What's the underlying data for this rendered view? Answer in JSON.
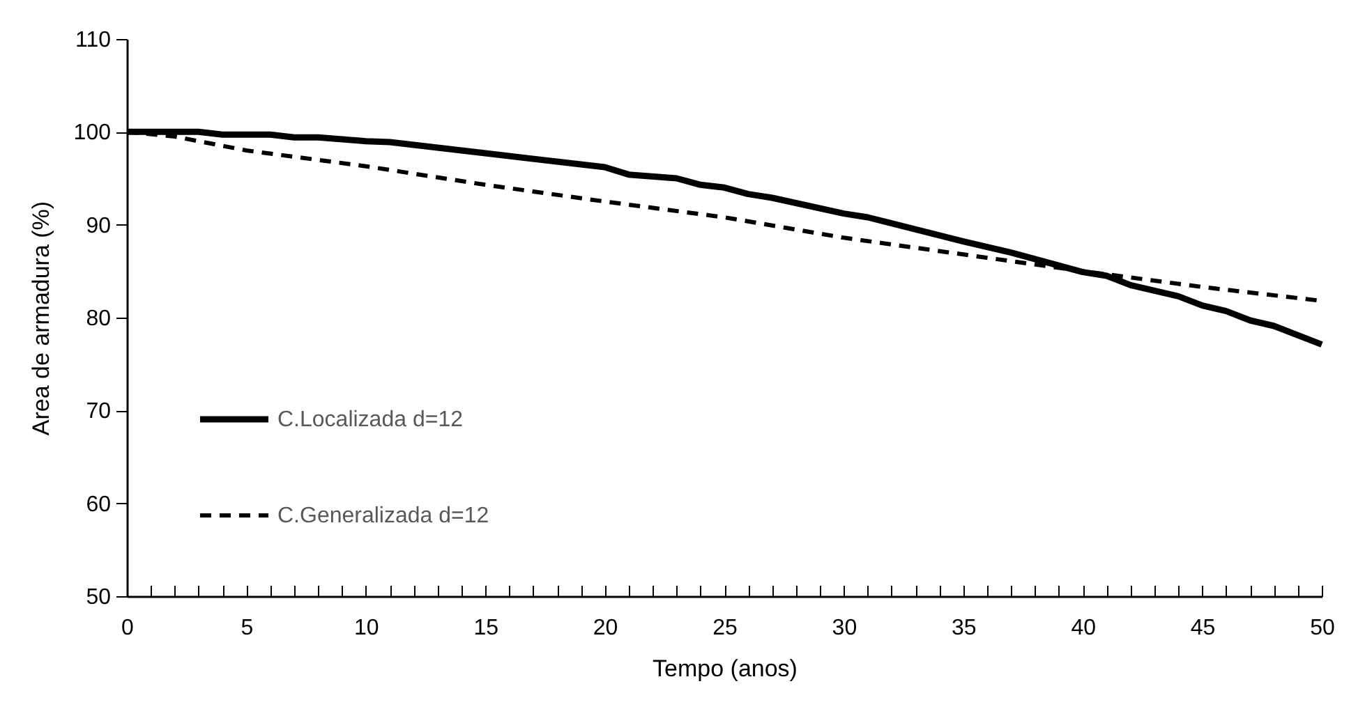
{
  "chart_data": {
    "type": "line",
    "xlabel": "Tempo (anos)",
    "ylabel": "Area de armadura (%)",
    "xlim": [
      0,
      50
    ],
    "ylim": [
      50,
      110
    ],
    "xticks": [
      0,
      {
        "value": 1,
        "label": null
      },
      {
        "value": 2,
        "label": null
      },
      {
        "value": 3,
        "label": null
      },
      {
        "value": 4,
        "label": null
      },
      5,
      {
        "value": 6,
        "label": null
      },
      {
        "value": 7,
        "label": null
      },
      {
        "value": 8,
        "label": null
      },
      {
        "value": 9,
        "label": null
      },
      10,
      {
        "value": 11,
        "label": null
      },
      {
        "value": 12,
        "label": null
      },
      {
        "value": 13,
        "label": null
      },
      {
        "value": 14,
        "label": null
      },
      15,
      {
        "value": 16,
        "label": null
      },
      {
        "value": 17,
        "label": null
      },
      {
        "value": 18,
        "label": null
      },
      {
        "value": 19,
        "label": null
      },
      20,
      {
        "value": 21,
        "label": null
      },
      {
        "value": 22,
        "label": null
      },
      {
        "value": 23,
        "label": null
      },
      {
        "value": 24,
        "label": null
      },
      25,
      {
        "value": 26,
        "label": null
      },
      {
        "value": 27,
        "label": null
      },
      {
        "value": 28,
        "label": null
      },
      {
        "value": 29,
        "label": null
      },
      30,
      {
        "value": 31,
        "label": null
      },
      {
        "value": 32,
        "label": null
      },
      {
        "value": 33,
        "label": null
      },
      {
        "value": 34,
        "label": null
      },
      35,
      {
        "value": 36,
        "label": null
      },
      {
        "value": 37,
        "label": null
      },
      {
        "value": 38,
        "label": null
      },
      {
        "value": 39,
        "label": null
      },
      40,
      {
        "value": 41,
        "label": null
      },
      {
        "value": 42,
        "label": null
      },
      {
        "value": 43,
        "label": null
      },
      {
        "value": 44,
        "label": null
      },
      45,
      {
        "value": 46,
        "label": null
      },
      {
        "value": 47,
        "label": null
      },
      {
        "value": 48,
        "label": null
      },
      {
        "value": 49,
        "label": null
      },
      50
    ],
    "yticks": [
      50,
      60,
      70,
      80,
      90,
      100,
      110
    ],
    "grid": false,
    "legend": "bottom left",
    "marker": "none",
    "series": [
      {
        "name": "C.Localizada d=12",
        "color": "#000000",
        "line_style": "solid",
        "x": [
          0,
          3,
          4,
          6,
          7,
          8,
          10,
          11,
          15,
          20,
          21,
          23,
          24,
          25,
          26,
          27,
          30,
          31,
          35,
          37,
          40,
          41,
          42,
          44,
          45,
          46,
          47,
          48,
          50
        ],
        "values": [
          100,
          100,
          99.7,
          99.7,
          99.4,
          99.4,
          99.0,
          98.9,
          97.7,
          96.2,
          95.4,
          95.0,
          94.3,
          94.0,
          93.3,
          92.9,
          91.2,
          90.8,
          88.2,
          87.0,
          84.9,
          84.5,
          83.5,
          82.3,
          81.3,
          80.7,
          79.7,
          79.1,
          77.1
        ]
      },
      {
        "name": "C.Generalizada d=12",
        "color": "#000000",
        "line_style": "dashed",
        "x": [
          0,
          2,
          5,
          10,
          15,
          20,
          25,
          30,
          35,
          40,
          45,
          50
        ],
        "values": [
          100,
          99.5,
          98.0,
          96.3,
          94.3,
          92.5,
          90.8,
          88.6,
          86.8,
          85.0,
          83.3,
          81.8
        ]
      }
    ]
  }
}
